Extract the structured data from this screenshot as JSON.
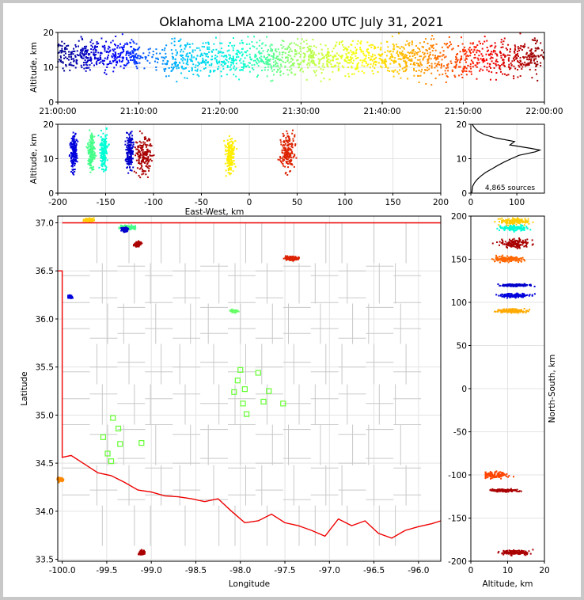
{
  "figure": {
    "title": "Oklahoma LMA 2100-2200 UTC July 31, 2021"
  },
  "chart_data": [
    {
      "type": "scatter",
      "panel": "time-altitude",
      "ylabel": "Altitude, km",
      "xlim": [
        "21:00:00",
        "22:00:00"
      ],
      "ylim": [
        0,
        20
      ],
      "x_ticks": [
        "21:00:00",
        "21:10:00",
        "21:20:00",
        "21:30:00",
        "21:40:00",
        "21:50:00",
        "22:00:00"
      ],
      "y_ticks": [
        0,
        10,
        20
      ],
      "color_by": "time",
      "colormap": [
        "#00008b",
        "#0000ff",
        "#00bfff",
        "#00ffd5",
        "#aaff55",
        "#ffff00",
        "#ff9900",
        "#ff0000",
        "#8b0000"
      ],
      "clusters": [
        {
          "x_min": 0.0,
          "x_max": 10.0,
          "y_center": 13.5,
          "y_spread": 3,
          "density": 1.0
        },
        {
          "x_min": 10.0,
          "x_max": 13.0,
          "y_center": 13,
          "y_spread": 2,
          "density": 0.3
        },
        {
          "x_min": 13.0,
          "x_max": 60.0,
          "y_center": 12.5,
          "y_spread": 3.5,
          "density": 0.9
        }
      ]
    },
    {
      "type": "scatter",
      "panel": "east-west-altitude",
      "xlabel": "East-West, km",
      "ylabel": "Altitude, km",
      "xlim": [
        -200,
        200
      ],
      "ylim": [
        0,
        20
      ],
      "x_ticks": [
        -200,
        -150,
        -100,
        -50,
        0,
        50,
        100,
        150,
        200
      ],
      "y_ticks": [
        0,
        10,
        20
      ],
      "clusters": [
        {
          "x": -183,
          "spread": 4,
          "y": 12,
          "color": "#0000dd"
        },
        {
          "x": -165,
          "spread": 4,
          "y": 12,
          "color": "#44ff88"
        },
        {
          "x": -152,
          "spread": 5,
          "y": 12,
          "color": "#00ffd5"
        },
        {
          "x": -125,
          "spread": 4,
          "y": 12,
          "color": "#0000cc"
        },
        {
          "x": -110,
          "spread": 9,
          "y": 11,
          "color": "#aa0000"
        },
        {
          "x": -20,
          "spread": 6,
          "y": 11,
          "color": "#ffee00"
        },
        {
          "x": 40,
          "spread": 8,
          "y": 12,
          "color": "#dd2200"
        }
      ]
    },
    {
      "type": "line",
      "panel": "altitude-histogram",
      "annotation": "4,865 sources",
      "xlim": [
        0,
        160
      ],
      "ylim": [
        0,
        20
      ],
      "x_ticks": [
        0,
        100
      ],
      "y_ticks": [
        0,
        10,
        20
      ],
      "profile": [
        {
          "alt": 0,
          "count": 2
        },
        {
          "alt": 2,
          "count": 4
        },
        {
          "alt": 3,
          "count": 8
        },
        {
          "alt": 4,
          "count": 14
        },
        {
          "alt": 5,
          "count": 22
        },
        {
          "alt": 6,
          "count": 32
        },
        {
          "alt": 7,
          "count": 45
        },
        {
          "alt": 8,
          "count": 58
        },
        {
          "alt": 9,
          "count": 72
        },
        {
          "alt": 10,
          "count": 88
        },
        {
          "alt": 11,
          "count": 105
        },
        {
          "alt": 12,
          "count": 140
        },
        {
          "alt": 12.5,
          "count": 150
        },
        {
          "alt": 13,
          "count": 130
        },
        {
          "alt": 14,
          "count": 85
        },
        {
          "alt": 15,
          "count": 95
        },
        {
          "alt": 16,
          "count": 55
        },
        {
          "alt": 17,
          "count": 30
        },
        {
          "alt": 18,
          "count": 15
        },
        {
          "alt": 19,
          "count": 8
        },
        {
          "alt": 20,
          "count": 3
        }
      ]
    },
    {
      "type": "scatter",
      "panel": "map",
      "xlabel": "Longitude",
      "ylabel": "Latitude",
      "xlim": [
        -100.05,
        -95.75
      ],
      "ylim": [
        33.48,
        37.07
      ],
      "x_ticks": [
        -100.0,
        -99.5,
        -99.0,
        -98.5,
        -98.0,
        -97.5,
        -97.0,
        -96.5,
        -96.0
      ],
      "y_ticks": [
        33.5,
        34.0,
        34.5,
        35.0,
        35.5,
        36.0,
        36.5,
        37.0
      ],
      "stations": [
        {
          "lon": -98.0,
          "lat": 35.47
        },
        {
          "lon": -98.03,
          "lat": 35.36
        },
        {
          "lon": -97.95,
          "lat": 35.27
        },
        {
          "lon": -98.07,
          "lat": 35.24
        },
        {
          "lon": -97.97,
          "lat": 35.12
        },
        {
          "lon": -97.93,
          "lat": 35.01
        },
        {
          "lon": -97.8,
          "lat": 35.44
        },
        {
          "lon": -97.68,
          "lat": 35.25
        },
        {
          "lon": -97.74,
          "lat": 35.14
        },
        {
          "lon": -97.52,
          "lat": 35.12
        },
        {
          "lon": -99.43,
          "lat": 34.97
        },
        {
          "lon": -99.37,
          "lat": 34.86
        },
        {
          "lon": -99.54,
          "lat": 34.77
        },
        {
          "lon": -99.35,
          "lat": 34.7
        },
        {
          "lon": -99.49,
          "lat": 34.6
        },
        {
          "lon": -99.45,
          "lat": 34.52
        },
        {
          "lon": -99.11,
          "lat": 34.71
        }
      ],
      "clusters": [
        {
          "lon": -99.7,
          "lat": 37.03,
          "sx": 0.08,
          "sy": 0.02,
          "color": "#ffcc00"
        },
        {
          "lon": -99.25,
          "lat": 36.95,
          "sx": 0.12,
          "sy": 0.03,
          "color": "#44ff88"
        },
        {
          "lon": -99.3,
          "lat": 36.93,
          "sx": 0.05,
          "sy": 0.03,
          "color": "#0000cc"
        },
        {
          "lon": -99.15,
          "lat": 36.78,
          "sx": 0.05,
          "sy": 0.04,
          "color": "#aa0000"
        },
        {
          "lon": -99.91,
          "lat": 36.23,
          "sx": 0.03,
          "sy": 0.02,
          "color": "#0000dd"
        },
        {
          "lon": -98.07,
          "lat": 36.08,
          "sx": 0.05,
          "sy": 0.02,
          "color": "#66ff66"
        },
        {
          "lon": -97.42,
          "lat": 36.63,
          "sx": 0.1,
          "sy": 0.03,
          "color": "#dd2200"
        },
        {
          "lon": -99.1,
          "lat": 33.57,
          "sx": 0.04,
          "sy": 0.03,
          "color": "#aa0000"
        },
        {
          "lon": -100.02,
          "lat": 34.33,
          "sx": 0.05,
          "sy": 0.03,
          "color": "#ff8800"
        }
      ]
    },
    {
      "type": "scatter",
      "panel": "altitude-north-south",
      "xlabel": "Altitude, km",
      "ylabel": "North-South, km",
      "xlim": [
        0,
        20
      ],
      "ylim": [
        -200,
        200
      ],
      "x_ticks": [
        0,
        10,
        20
      ],
      "y_ticks": [
        -200,
        -150,
        -100,
        -50,
        0,
        50,
        100,
        150,
        200
      ],
      "clusters": [
        {
          "y": 194,
          "spread": 5,
          "x": 12,
          "color": "#ffcc00"
        },
        {
          "y": 186,
          "spread": 4,
          "x": 12,
          "color": "#00ffd5"
        },
        {
          "y": 168,
          "spread": 7,
          "x": 12,
          "color": "#aa0000"
        },
        {
          "y": 150,
          "spread": 5,
          "x": 10,
          "color": "#ff6600"
        },
        {
          "y": 120,
          "spread": 2,
          "x": 12,
          "color": "#0000cc"
        },
        {
          "y": 108,
          "spread": 3,
          "x": 12,
          "color": "#0000dd"
        },
        {
          "y": 90,
          "spread": 3,
          "x": 11,
          "color": "#ffaa00"
        },
        {
          "y": -100,
          "spread": 5,
          "x": 6,
          "color": "#ff4400"
        },
        {
          "y": -118,
          "spread": 2,
          "x": 9,
          "color": "#aa0000"
        },
        {
          "y": -190,
          "spread": 4,
          "x": 12,
          "color": "#aa0000"
        }
      ]
    }
  ]
}
